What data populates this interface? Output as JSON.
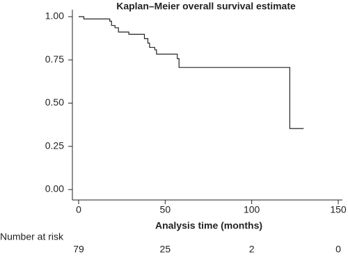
{
  "chart_data": {
    "type": "step",
    "title": "Kaplan–Meier overall survival estimate",
    "x_label": "Analysis time (months)",
    "x": [
      0,
      3,
      18,
      19,
      21,
      23,
      29,
      38,
      40,
      41,
      44,
      45,
      57,
      58,
      122,
      130
    ],
    "y": [
      1.0,
      0.987,
      0.974,
      0.949,
      0.936,
      0.911,
      0.898,
      0.873,
      0.847,
      0.822,
      0.808,
      0.783,
      0.757,
      0.706,
      0.353,
      0.353
    ],
    "color": "#222222",
    "xlim": [
      -5,
      150
    ],
    "xticks": [
      0,
      50,
      100,
      150
    ],
    "ylim": [
      0,
      1.0
    ],
    "yticks": [
      {
        "value": 0,
        "label": "0.00"
      },
      {
        "value": 0.25,
        "label": "0.25"
      },
      {
        "value": 0.5,
        "label": "0.50"
      },
      {
        "value": 0.75,
        "label": "0.75"
      },
      {
        "value": 1.0,
        "label": "1.00"
      }
    ],
    "risk_table": {
      "label": "Number at risk",
      "times": [
        0,
        50,
        100,
        150
      ],
      "counts": [
        79,
        25,
        2,
        0
      ]
    }
  }
}
